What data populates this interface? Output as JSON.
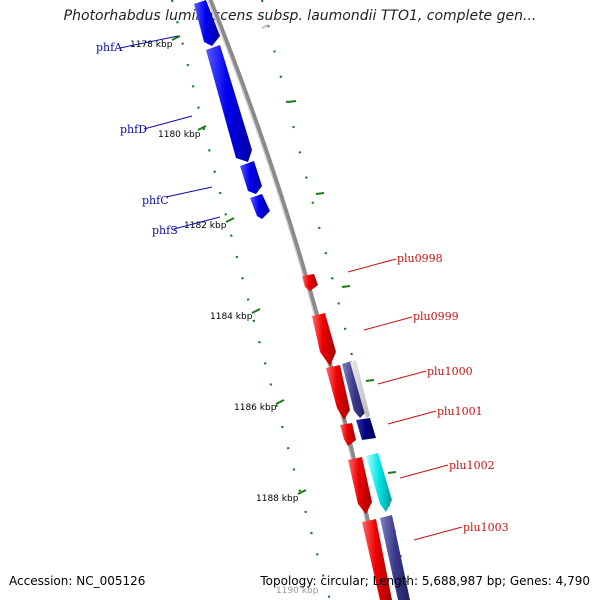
{
  "title": "Photorhabdus luminescens subsp. laumondii TTO1, complete gen...",
  "accession": "Accession: NC_005126",
  "summary": "Topology: circular; Length: 5,688,987 bp; Genes: 4,790",
  "colors": {
    "backbone": "#8a8a8a",
    "left_genes": "#0000ee",
    "right_genes": "#ee0000",
    "right_navy": "#000080",
    "right_slate": "#3a3a8c",
    "right_cyan": "#00e5e5",
    "left_labels": "#0a0aa8",
    "right_labels": "#c81010",
    "ticks": "#1a7a1a"
  },
  "scale_labels": [
    "1178 kbp",
    "1180 kbp",
    "1182 kbp",
    "1184 kbp",
    "1186 kbp",
    "1188 kbp",
    "1190 kbp"
  ],
  "left_genes": [
    {
      "label": "phfA",
      "direction": "down"
    },
    {
      "label": "phfD",
      "direction": "down"
    },
    {
      "label": "phfC",
      "direction": "down"
    },
    {
      "label": "phfS",
      "direction": "down"
    }
  ],
  "right_genes": [
    {
      "label": "plu0998",
      "direction": "down"
    },
    {
      "label": "plu0999",
      "direction": "down"
    },
    {
      "label": "plu1000",
      "direction": "down"
    },
    {
      "label": "plu1001",
      "direction": "down"
    },
    {
      "label": "plu1002",
      "direction": "down"
    },
    {
      "label": "plu1003",
      "direction": "down"
    }
  ]
}
